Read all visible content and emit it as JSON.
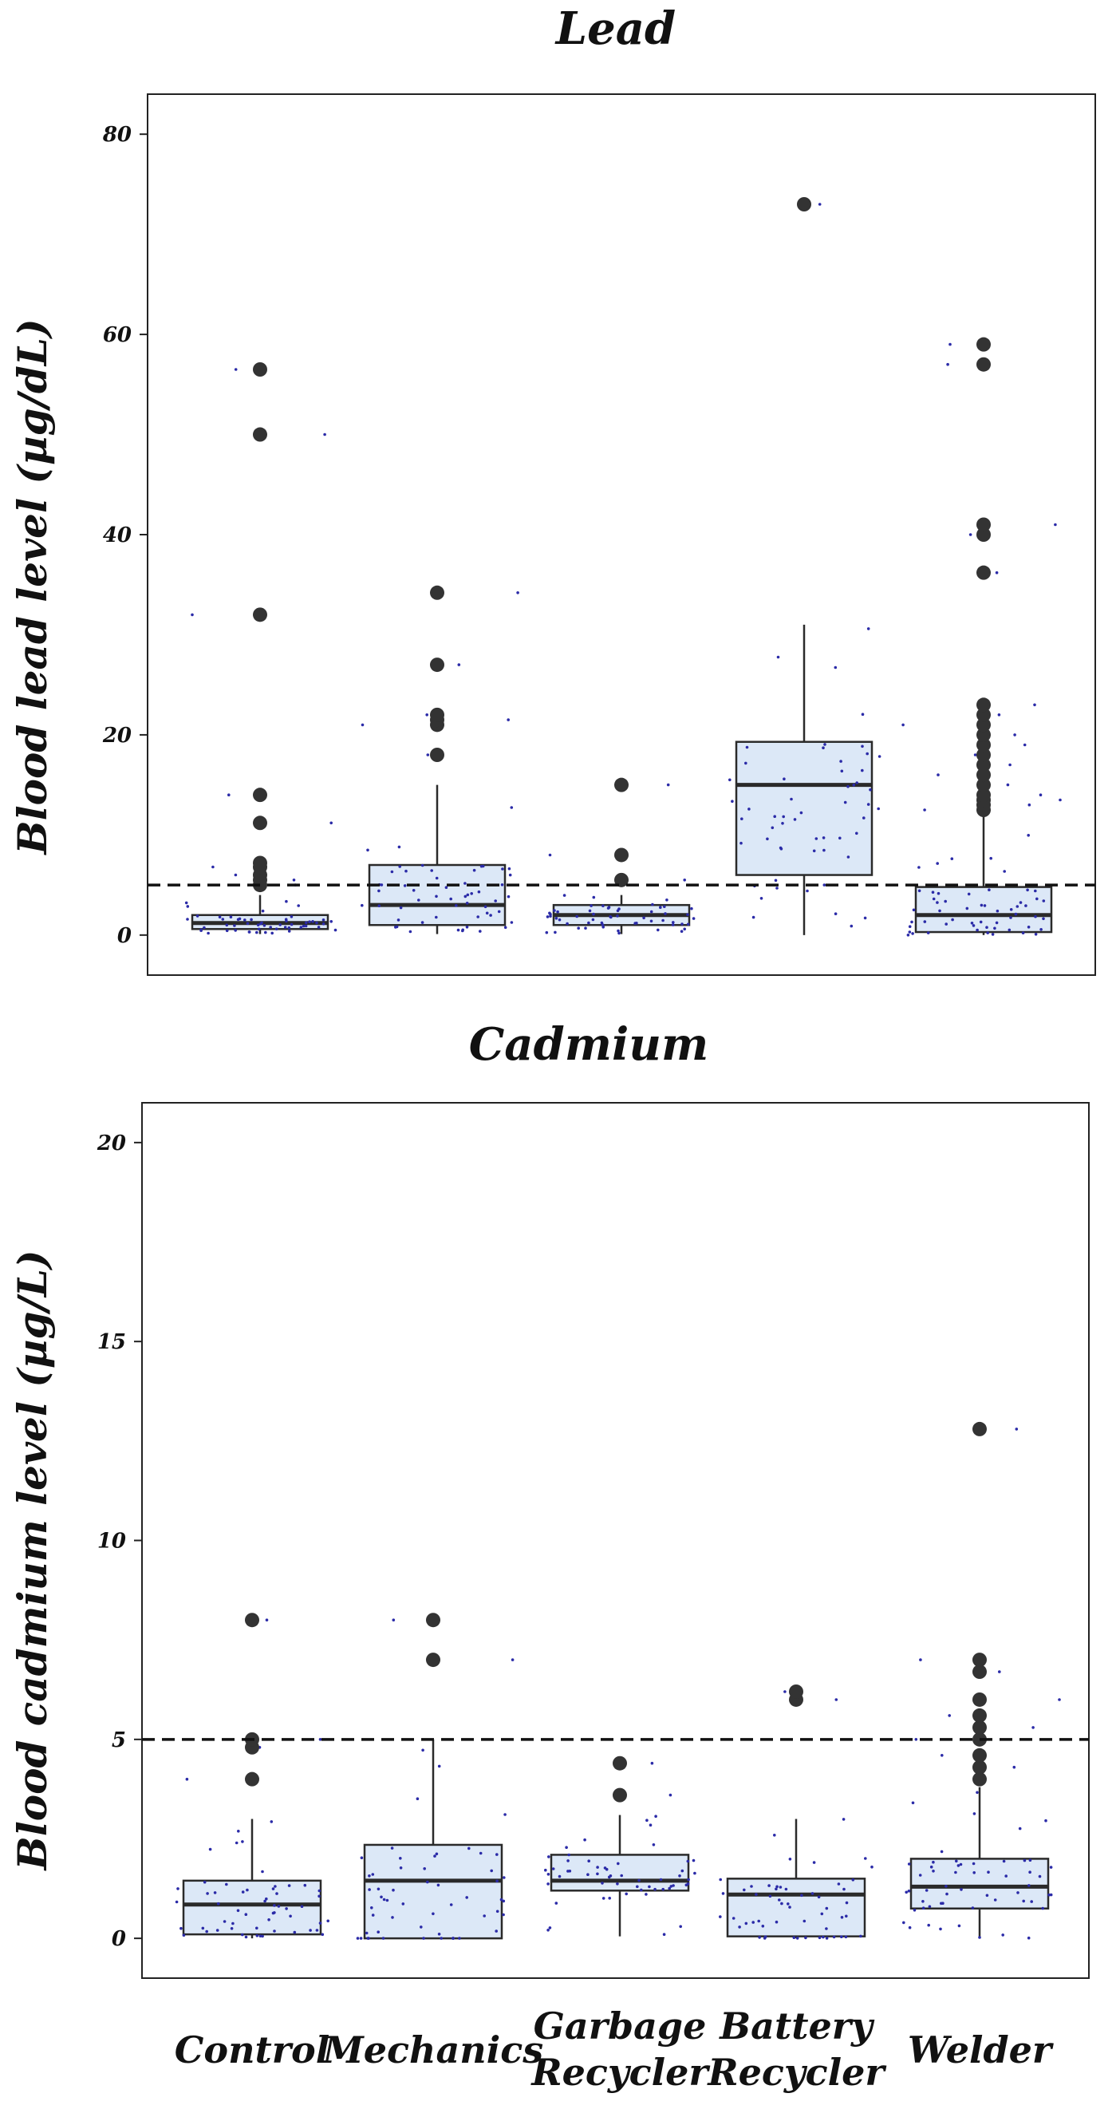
{
  "chart_data": [
    {
      "type": "box",
      "title": "Lead",
      "ylabel": "Blood lead level (µg/dL)",
      "xlabel": "",
      "ylim": [
        -4,
        84
      ],
      "yticks": [
        0,
        20,
        40,
        60,
        80
      ],
      "threshold": 5,
      "categories": [
        "Control",
        "Mechanics",
        "Garbage Recycler",
        "Battery Recycler",
        "Welder"
      ],
      "boxes": [
        {
          "group": "Control",
          "q1": 0.6,
          "median": 1.2,
          "q3": 2.0,
          "whisker_low": 0.1,
          "whisker_high": 4.0,
          "outliers": [
            5.0,
            5.5,
            6.0,
            6.8,
            7.2,
            11.2,
            14.0,
            32.0,
            50.0,
            56.5
          ]
        },
        {
          "group": "Mechanics",
          "q1": 1.0,
          "median": 3.0,
          "q3": 7.0,
          "whisker_low": 0.1,
          "whisker_high": 15.0,
          "outliers": [
            18.0,
            21.0,
            21.5,
            22.0,
            27.0,
            34.2
          ]
        },
        {
          "group": "Garbage Recycler",
          "q1": 1.0,
          "median": 2.0,
          "q3": 3.0,
          "whisker_low": 0.1,
          "whisker_high": 4.0,
          "outliers": [
            5.5,
            8.0,
            15.0
          ]
        },
        {
          "group": "Battery Recycler",
          "q1": 6.0,
          "median": 15.0,
          "q3": 19.3,
          "whisker_low": 0.0,
          "whisker_high": 31.0,
          "outliers": [
            73.0
          ]
        },
        {
          "group": "Welder",
          "q1": 0.3,
          "median": 2.0,
          "q3": 4.8,
          "whisker_low": 0.0,
          "whisker_high": 12.0,
          "outliers": [
            12.5,
            13.0,
            13.5,
            14.0,
            15.0,
            16.0,
            17.0,
            18.0,
            19.0,
            20.0,
            21.0,
            22.0,
            23.0,
            36.2,
            40.0,
            41.0,
            57.0,
            59.0
          ]
        }
      ]
    },
    {
      "type": "box",
      "title": "Cadmium",
      "ylabel": "Blood cadmium level (µg/L)",
      "xlabel": "",
      "ylim": [
        -1,
        21
      ],
      "yticks": [
        0,
        5,
        10,
        15,
        20
      ],
      "threshold": 5,
      "categories": [
        "Control",
        "Mechanics",
        "Garbage Recycler",
        "Battery Recycler",
        "Welder"
      ],
      "boxes": [
        {
          "group": "Control",
          "q1": 0.1,
          "median": 0.85,
          "q3": 1.45,
          "whisker_low": 0.0,
          "whisker_high": 3.0,
          "outliers": [
            4.0,
            4.8,
            5.0,
            8.0
          ]
        },
        {
          "group": "Mechanics",
          "q1": 0.0,
          "median": 1.45,
          "q3": 2.35,
          "whisker_low": 0.0,
          "whisker_high": 5.0,
          "outliers": [
            7.0,
            8.0
          ]
        },
        {
          "group": "Garbage Recycler",
          "q1": 1.2,
          "median": 1.45,
          "q3": 2.1,
          "whisker_low": 0.05,
          "whisker_high": 3.1,
          "outliers": [
            3.6,
            4.4
          ]
        },
        {
          "group": "Battery Recycler",
          "q1": 0.05,
          "median": 1.1,
          "q3": 1.5,
          "whisker_low": 0.0,
          "whisker_high": 3.0,
          "outliers": [
            6.0,
            6.2
          ]
        },
        {
          "group": "Welder",
          "q1": 0.75,
          "median": 1.3,
          "q3": 2.0,
          "whisker_low": 0.0,
          "whisker_high": 3.8,
          "outliers": [
            4.0,
            4.3,
            4.6,
            5.0,
            5.3,
            5.6,
            6.0,
            6.7,
            7.0,
            12.8
          ]
        }
      ]
    }
  ],
  "colors": {
    "box_fill": "#dce8f7",
    "box_stroke": "#2a2a2a",
    "outlier": "#333333",
    "jitter": "#2b2ba8",
    "threshold": "#111111",
    "frame": "#222222"
  }
}
